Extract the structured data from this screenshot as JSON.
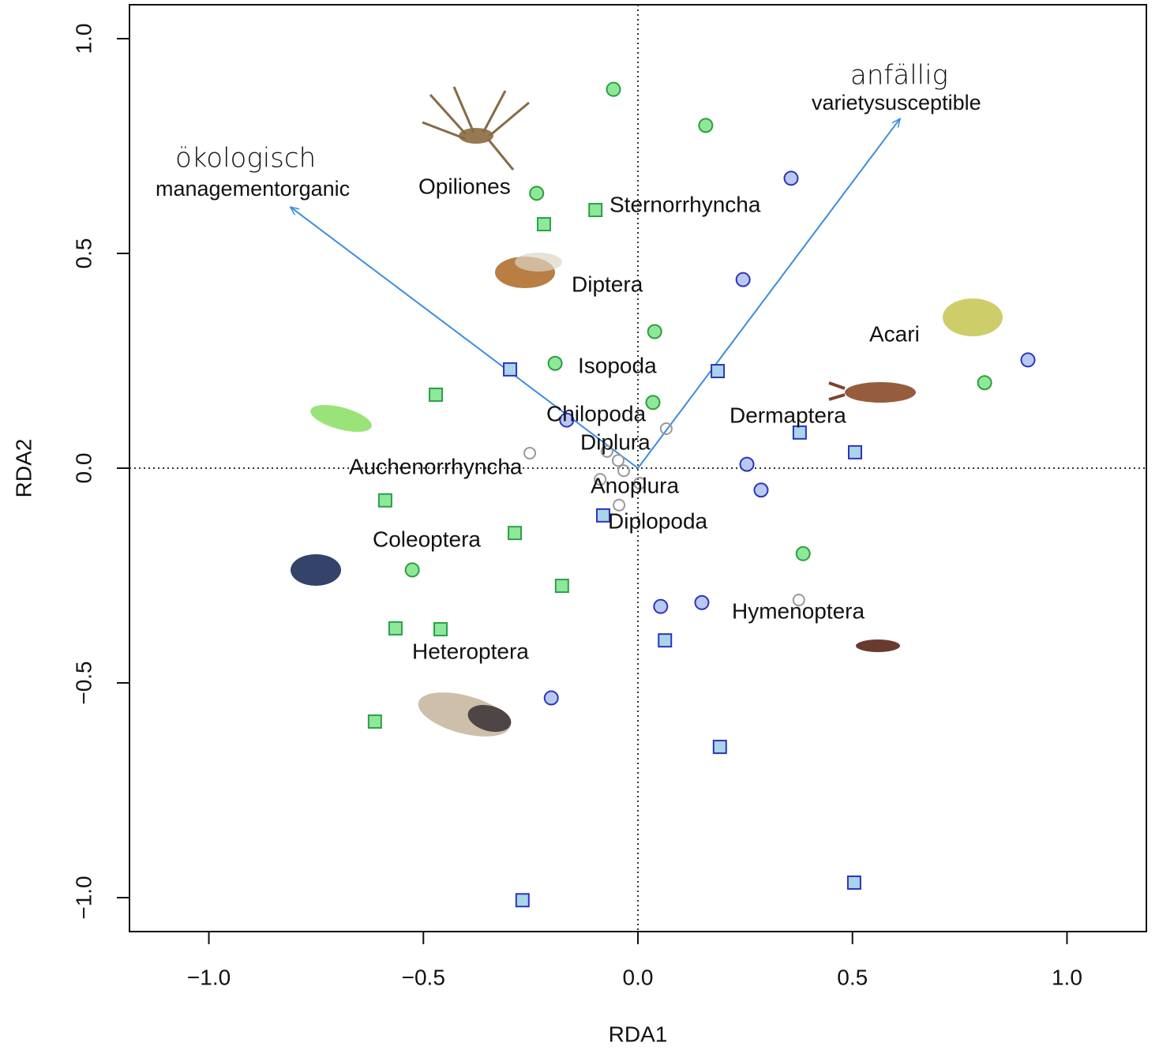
{
  "chart_data": {
    "type": "scatter",
    "x_label": "RDA1",
    "y_label": "RDA2",
    "xlim": [
      -1.185,
      1.185
    ],
    "ylim": [
      -1.079,
      1.079
    ],
    "xticks": [
      {
        "value": -1.0,
        "label": "−1.0"
      },
      {
        "value": -0.5,
        "label": "−0.5"
      },
      {
        "value": 0,
        "label": "0.0"
      },
      0.5,
      {
        "value": 1.0,
        "label": "1.0"
      }
    ],
    "yticks": [
      {
        "value": -1.0,
        "label": "−1.0"
      },
      {
        "value": -0.5,
        "label": "−0.5"
      },
      {
        "value": 0,
        "label": "0.0"
      },
      0.5,
      {
        "value": 1.0,
        "label": "1.0"
      }
    ],
    "reference_lines": true,
    "series": [
      {
        "marker": "circle",
        "color": "#8ee89a",
        "edge": "#2e9e3e",
        "x": [
          -0.057,
          0.158,
          -0.236,
          0.039,
          -0.193,
          0.035,
          0.808,
          0.385,
          -0.526
        ],
        "values": [
          0.882,
          0.798,
          0.64,
          0.318,
          0.244,
          0.153,
          0.199,
          -0.199,
          -0.237
        ]
      },
      {
        "marker": "square",
        "color": "#8ee89a",
        "edge": "#2ca048",
        "x": [
          -0.099,
          -0.219,
          -0.471,
          -0.589,
          -0.287,
          -0.177,
          -0.565,
          -0.46,
          -0.613
        ],
        "values": [
          0.601,
          0.568,
          0.171,
          -0.075,
          -0.151,
          -0.274,
          -0.373,
          -0.375,
          -0.59
        ]
      },
      {
        "marker": "circle",
        "color": "#b8c8f2",
        "edge": "#2b35b8",
        "x": [
          0.357,
          0.245,
          0.909,
          -0.166,
          0.254,
          0.287,
          0.053,
          0.149,
          -0.202
        ],
        "values": [
          0.675,
          0.439,
          0.252,
          0.112,
          0.009,
          -0.051,
          -0.322,
          -0.313,
          -0.535
        ]
      },
      {
        "marker": "square",
        "color": "#a9d4ec",
        "edge": "#2b35b8",
        "x": [
          -0.298,
          0.186,
          0.377,
          0.506,
          -0.081,
          0.063,
          0.191,
          -0.269,
          0.504
        ],
        "values": [
          0.23,
          0.226,
          0.083,
          0.037,
          -0.11,
          -0.401,
          -0.649,
          -1.006,
          -0.965
        ]
      },
      {
        "marker": "open",
        "color": "#999999",
        "edge": "#999999",
        "x": [
          -0.252,
          0.066,
          -0.072,
          -0.046,
          -0.033,
          0.004,
          -0.088,
          -0.044,
          0.375
        ],
        "values": [
          0.035,
          0.092,
          0.039,
          0.018,
          -0.006,
          -0.035,
          -0.026,
          -0.086,
          -0.307
        ]
      }
    ],
    "arrows": [
      {
        "label": "managementorganic",
        "translation": "ökologisch",
        "x": -0.81,
        "y": 0.608
      },
      {
        "label": "varietysusceptible",
        "translation": "anfällig",
        "x": 0.611,
        "y": 0.814
      }
    ],
    "arrow_color": "#3a8ee0",
    "species_labels": [
      "Opiliones",
      "Sternorrhyncha",
      "Diptera",
      "Isopoda",
      "Acari",
      "Chilopoda",
      "Dermaptera",
      "Diplura",
      "Auchenorrhyncha",
      "Anoplura",
      "Diplopoda",
      "Coleoptera",
      "Hymenoptera",
      "Heteroptera"
    ]
  }
}
